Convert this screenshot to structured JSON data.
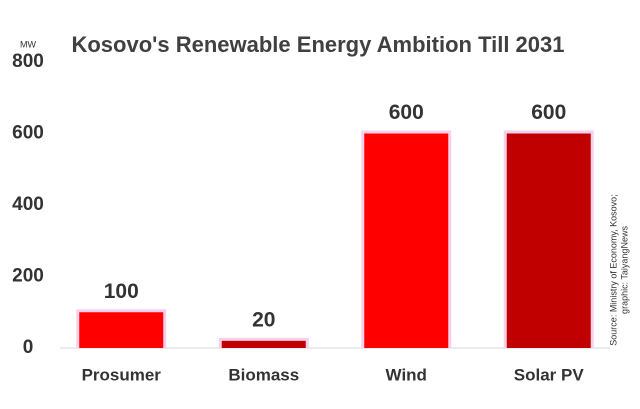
{
  "chart_data": {
    "type": "bar",
    "title": "Kosovo's Renewable Energy Ambition Till 2031",
    "unit": "MW",
    "categories": [
      "Prosumer",
      "Biomass",
      "Wind",
      "Solar PV"
    ],
    "values": [
      100,
      20,
      600,
      600
    ],
    "colors": [
      "#ff0000",
      "#c00000",
      "#ff0000",
      "#c00000"
    ],
    "ylim": [
      0,
      800
    ],
    "yticks": [
      0,
      200,
      400,
      600,
      800
    ],
    "source": [
      "Source: Ministry of Economy, Kosovo;",
      "graphic: TaiyangNews"
    ]
  }
}
